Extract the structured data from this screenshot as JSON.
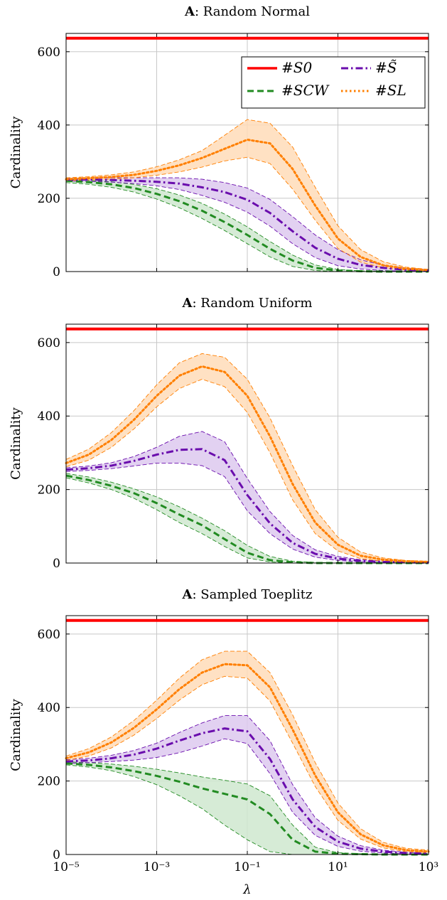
{
  "chart_data": [
    {
      "type": "line",
      "title_bold": "A",
      "title_rest": ": Random Normal",
      "ylabel": "Cardinality",
      "xlabel": "",
      "x_scale": "log10",
      "xlim": [
        1e-05,
        1000
      ],
      "ylim": [
        0,
        650
      ],
      "yticks": [
        0,
        200,
        400,
        600
      ],
      "xticks": [
        -5,
        -3,
        -1,
        1,
        3
      ],
      "grid": true,
      "legend": "top-right",
      "legend_entries": [
        {
          "series": "S0",
          "label": "#S0"
        },
        {
          "series": "Stilde",
          "label": "#S̃"
        },
        {
          "series": "SCW",
          "label": "#SCW"
        },
        {
          "series": "SL",
          "label": "#SL"
        }
      ],
      "x_log10": [
        -5,
        -4.5,
        -4,
        -3.5,
        -3,
        -2.5,
        -2,
        -1.5,
        -1,
        -0.5,
        0,
        0.5,
        1,
        1.5,
        2,
        2.5,
        3
      ],
      "series": [
        {
          "name": "#S0",
          "key": "S0",
          "color": "#ff0000",
          "dash": "solid",
          "mean": [
            637,
            637,
            637,
            637,
            637,
            637,
            637,
            637,
            637,
            637,
            637,
            637,
            637,
            637,
            637,
            637,
            637
          ]
        },
        {
          "name": "#SCW",
          "key": "SCW",
          "color": "#228b22",
          "dash": "dashed",
          "mean": [
            248,
            244,
            238,
            228,
            212,
            192,
            166,
            135,
            100,
            62,
            30,
            10,
            3,
            1,
            0,
            0,
            0
          ],
          "upper": [
            252,
            249,
            245,
            238,
            226,
            209,
            186,
            157,
            122,
            82,
            45,
            18,
            6,
            2,
            1,
            0,
            0
          ],
          "lower": [
            243,
            238,
            230,
            217,
            198,
            174,
            145,
            112,
            76,
            40,
            14,
            3,
            0,
            0,
            0,
            0,
            0
          ]
        },
        {
          "name": "#S̃",
          "key": "Stilde",
          "color": "#6a0dad",
          "dash": "dashdot",
          "mean": [
            251,
            251,
            250,
            248,
            245,
            240,
            230,
            217,
            196,
            160,
            110,
            65,
            35,
            18,
            10,
            5,
            3
          ],
          "upper": [
            254,
            255,
            256,
            256,
            256,
            256,
            252,
            243,
            228,
            197,
            150,
            100,
            60,
            32,
            17,
            9,
            5
          ],
          "lower": [
            247,
            246,
            244,
            240,
            234,
            224,
            208,
            189,
            162,
            124,
            76,
            38,
            16,
            7,
            3,
            1,
            0
          ]
        },
        {
          "name": "#SL",
          "key": "SL",
          "color": "#ff7f00",
          "dash": "dotted",
          "mean": [
            252,
            255,
            258,
            264,
            275,
            290,
            310,
            335,
            360,
            350,
            280,
            180,
            90,
            40,
            17,
            8,
            4
          ],
          "upper": [
            256,
            259,
            264,
            272,
            286,
            305,
            330,
            372,
            415,
            405,
            340,
            230,
            125,
            60,
            27,
            12,
            6
          ],
          "lower": [
            248,
            250,
            252,
            256,
            263,
            272,
            285,
            302,
            312,
            295,
            225,
            140,
            63,
            26,
            10,
            4,
            2
          ]
        }
      ]
    },
    {
      "type": "line",
      "title_bold": "A",
      "title_rest": ": Random Uniform",
      "ylabel": "Cardinality",
      "xlabel": "",
      "x_scale": "log10",
      "xlim": [
        1e-05,
        1000
      ],
      "ylim": [
        0,
        650
      ],
      "yticks": [
        0,
        200,
        400,
        600
      ],
      "xticks": [
        -5,
        -3,
        -1,
        1,
        3
      ],
      "grid": true,
      "x_log10": [
        -5,
        -4.5,
        -4,
        -3.5,
        -3,
        -2.5,
        -2,
        -1.5,
        -1,
        -0.5,
        0,
        0.5,
        1,
        1.5,
        2,
        2.5,
        3
      ],
      "series": [
        {
          "name": "#S0",
          "key": "S0",
          "color": "#ff0000",
          "dash": "solid",
          "mean": [
            637,
            637,
            637,
            637,
            637,
            637,
            637,
            637,
            637,
            637,
            637,
            637,
            637,
            637,
            637,
            637,
            637
          ]
        },
        {
          "name": "#SCW",
          "key": "SCW",
          "color": "#228b22",
          "dash": "dashed",
          "mean": [
            238,
            226,
            210,
            190,
            163,
            132,
            103,
            65,
            28,
            8,
            2,
            0,
            0,
            0,
            0,
            0,
            0
          ],
          "upper": [
            244,
            234,
            220,
            202,
            180,
            153,
            122,
            88,
            48,
            18,
            5,
            2,
            0,
            0,
            0,
            0,
            0
          ],
          "lower": [
            232,
            218,
            200,
            176,
            145,
            110,
            80,
            45,
            14,
            3,
            0,
            0,
            0,
            0,
            0,
            0,
            0
          ]
        },
        {
          "name": "#S̃",
          "key": "Stilde",
          "color": "#6a0dad",
          "dash": "dashdot",
          "mean": [
            254,
            258,
            265,
            278,
            295,
            308,
            310,
            280,
            185,
            108,
            55,
            25,
            12,
            6,
            3,
            2,
            1
          ],
          "upper": [
            259,
            264,
            273,
            290,
            315,
            345,
            358,
            330,
            230,
            140,
            75,
            36,
            18,
            9,
            5,
            3,
            2
          ],
          "lower": [
            249,
            252,
            257,
            264,
            272,
            272,
            265,
            235,
            142,
            80,
            38,
            16,
            7,
            3,
            1,
            0,
            0
          ]
        },
        {
          "name": "#SL",
          "key": "SL",
          "color": "#ff7f00",
          "dash": "dotted",
          "mean": [
            272,
            295,
            335,
            390,
            455,
            510,
            535,
            520,
            455,
            345,
            215,
            110,
            50,
            20,
            9,
            5,
            3
          ],
          "upper": [
            282,
            310,
            355,
            415,
            485,
            545,
            570,
            560,
            500,
            395,
            265,
            145,
            70,
            30,
            14,
            7,
            5
          ],
          "lower": [
            262,
            280,
            315,
            365,
            425,
            475,
            500,
            480,
            410,
            300,
            172,
            80,
            33,
            12,
            5,
            2,
            1
          ]
        }
      ]
    },
    {
      "type": "line",
      "title_bold": "A",
      "title_rest": ": Sampled Toeplitz",
      "ylabel": "Cardinality",
      "xlabel": "λ",
      "x_scale": "log10",
      "xlim": [
        1e-05,
        1000
      ],
      "ylim": [
        0,
        650
      ],
      "yticks": [
        0,
        200,
        400,
        600
      ],
      "xticks": [
        -5,
        -3,
        -1,
        1,
        3
      ],
      "xtick_labels": [
        "10^-5",
        "10^-3",
        "10^-1",
        "10^1",
        "10^3"
      ],
      "grid": true,
      "x_log10": [
        -5,
        -4.5,
        -4,
        -3.5,
        -3,
        -2.5,
        -2,
        -1.5,
        -1,
        -0.5,
        0,
        0.5,
        1,
        1.5,
        2,
        2.5,
        3
      ],
      "series": [
        {
          "name": "#S0",
          "key": "S0",
          "color": "#ff0000",
          "dash": "solid",
          "mean": [
            637,
            637,
            637,
            637,
            637,
            637,
            637,
            637,
            637,
            637,
            637,
            637,
            637,
            637,
            637,
            637,
            637
          ]
        },
        {
          "name": "#SCW",
          "key": "SCW",
          "color": "#228b22",
          "dash": "dashed",
          "mean": [
            248,
            244,
            237,
            227,
            214,
            198,
            180,
            165,
            150,
            110,
            40,
            8,
            2,
            1,
            0,
            0,
            0
          ],
          "upper": [
            252,
            250,
            246,
            240,
            232,
            222,
            211,
            202,
            192,
            160,
            80,
            20,
            5,
            2,
            0,
            0,
            0
          ],
          "lower": [
            244,
            238,
            228,
            212,
            190,
            160,
            125,
            80,
            40,
            8,
            0,
            0,
            0,
            0,
            0,
            0,
            0
          ]
        },
        {
          "name": "#S̃",
          "key": "Stilde",
          "color": "#6a0dad",
          "dash": "dashdot",
          "mean": [
            253,
            256,
            262,
            272,
            288,
            310,
            330,
            343,
            335,
            260,
            150,
            75,
            35,
            16,
            8,
            4,
            2
          ],
          "upper": [
            258,
            262,
            270,
            283,
            303,
            332,
            358,
            378,
            378,
            310,
            190,
            100,
            50,
            24,
            12,
            6,
            3
          ],
          "lower": [
            248,
            250,
            253,
            257,
            264,
            277,
            295,
            315,
            302,
            220,
            115,
            52,
            22,
            9,
            4,
            2,
            1
          ]
        },
        {
          "name": "#SL",
          "key": "SL",
          "color": "#ff7f00",
          "dash": "dotted",
          "mean": [
            262,
            278,
            305,
            345,
            395,
            450,
            495,
            518,
            515,
            455,
            340,
            215,
            115,
            55,
            25,
            12,
            8
          ],
          "upper": [
            268,
            288,
            320,
            365,
            420,
            480,
            530,
            553,
            553,
            495,
            380,
            250,
            140,
            70,
            33,
            17,
            12
          ],
          "lower": [
            256,
            268,
            290,
            325,
            370,
            420,
            462,
            485,
            480,
            418,
            303,
            185,
            93,
            42,
            18,
            8,
            5
          ]
        }
      ]
    }
  ]
}
